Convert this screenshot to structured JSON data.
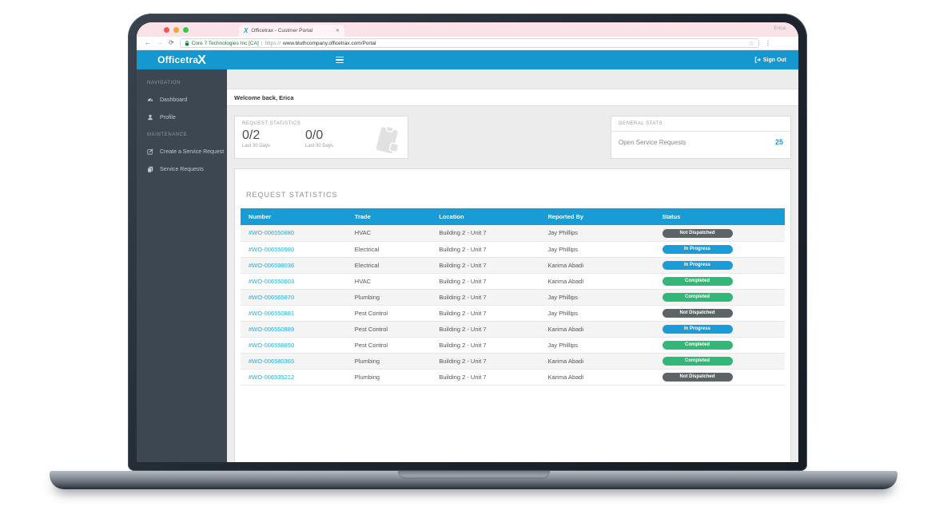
{
  "chrome": {
    "user_label": "Erica",
    "tab_title": "Officetrax - Custmer Portal",
    "tab_close": "✕",
    "favicon_glyph": "X",
    "back_glyph": "←",
    "forward_glyph": "→",
    "reload_glyph": "⟳",
    "ev_name": "Core 7 Technologies Inc [CA]",
    "separator": "|",
    "url_scheme": "https://",
    "url_host": "www.bluthcompany.officetrax.com/Portal",
    "star_glyph": "☆",
    "menu_glyph": "⋮"
  },
  "header": {
    "logo_text": "Officetra",
    "logo_x": "X",
    "sign_out": "Sign Out"
  },
  "sidebar": {
    "sections": [
      {
        "label": "NAVIGATION",
        "items": [
          {
            "icon": "dashboard-icon",
            "label": "Dashboard"
          },
          {
            "icon": "profile-icon",
            "label": "Profile"
          }
        ]
      },
      {
        "label": "MAINTENANCE",
        "items": [
          {
            "icon": "create-request-icon",
            "label": "Create a Service Request"
          },
          {
            "icon": "service-requests-icon",
            "label": "Service Requests"
          }
        ]
      }
    ]
  },
  "main": {
    "welcome": "Welcome back, Erica",
    "request_stats": {
      "title": "REQUEST STATISTICS",
      "stats": [
        {
          "value": "0/2",
          "caption": "Last 30 Days"
        },
        {
          "value": "0/0",
          "caption": "Last 30 Days"
        }
      ]
    },
    "general_stats": {
      "title": "GENERAL STATS",
      "label": "Open Service Requests",
      "value": "25"
    },
    "table": {
      "title": "REQUEST STATISTICS",
      "columns": [
        "Number",
        "Trade",
        "Location",
        "Reported By",
        "Status"
      ],
      "rows": [
        {
          "number": "#WO-006550880",
          "trade": "HVAC",
          "location": "Building 2 - Unit 7",
          "reported_by": "Jay Phillips",
          "status": "Not Dispatched"
        },
        {
          "number": "#WO-006550980",
          "trade": "Electrical",
          "location": "Building 2 - Unit 7",
          "reported_by": "Jay Phillips",
          "status": "In Progress"
        },
        {
          "number": "#WO-006598036",
          "trade": "Electrical",
          "location": "Building 2 - Unit 7",
          "reported_by": "Karima Abadi",
          "status": "In Progress"
        },
        {
          "number": "#WO-006550603",
          "trade": "HVAC",
          "location": "Building 2 - Unit 7",
          "reported_by": "Karima Abadi",
          "status": "Completed"
        },
        {
          "number": "#WO-006565870",
          "trade": "Plumbing",
          "location": "Building 2 - Unit 7",
          "reported_by": "Jay Phillips",
          "status": "Completed"
        },
        {
          "number": "#WO-006550881",
          "trade": "Pest Control",
          "location": "Building 2 - Unit 7",
          "reported_by": "Jay Phillips",
          "status": "Not Dispatched"
        },
        {
          "number": "#WO-006550889",
          "trade": "Pest Control",
          "location": "Building 2 - Unit 7",
          "reported_by": "Karima Abadi",
          "status": "In Progress"
        },
        {
          "number": "#WO-006556850",
          "trade": "Pest Control",
          "location": "Building 2 - Unit 7",
          "reported_by": "Jay Phillips",
          "status": "Completed"
        },
        {
          "number": "#WO-006580365",
          "trade": "Plumbing",
          "location": "Building 2 - Unit 7",
          "reported_by": "Karima Abadi",
          "status": "Completed"
        },
        {
          "number": "#WO-006535212",
          "trade": "Plumbing",
          "location": "Building 2 - Unit 7",
          "reported_by": "Karima Abadi",
          "status": "Not Dispatched"
        }
      ]
    }
  },
  "colors": {
    "header_blue": "#1598cf",
    "table_header_blue": "#199bd5",
    "link_blue": "#2aabe2",
    "accent_blue": "#1b9cd8",
    "status": {
      "Not Dispatched": "#5d6468",
      "In Progress": "#1b9cd8",
      "Completed": "#33b778"
    }
  }
}
